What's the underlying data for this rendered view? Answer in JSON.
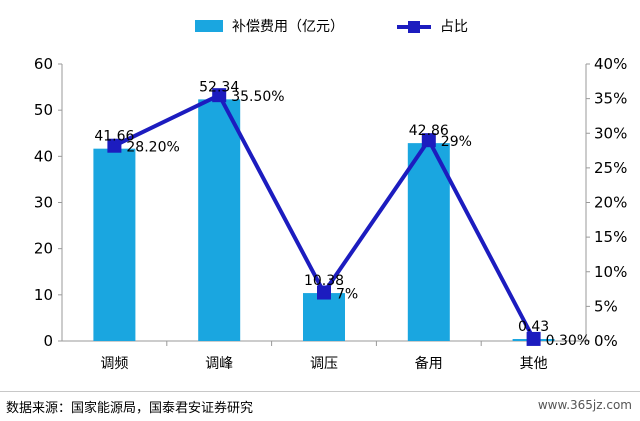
{
  "chart_data": {
    "type": "bar",
    "categories": [
      "调频",
      "调峰",
      "调压",
      "备用",
      "其他"
    ],
    "series": [
      {
        "name": "补偿费用（亿元）",
        "type": "bar",
        "axis": "left",
        "color": "#1aa6e0",
        "values": [
          41.66,
          52.34,
          10.38,
          42.86,
          0.43
        ],
        "labels": [
          "41.66",
          "52.34",
          "10.38",
          "42.86",
          "0.43"
        ]
      },
      {
        "name": "占比",
        "type": "line",
        "axis": "right",
        "color": "#1c1cbf",
        "values": [
          28.2,
          35.5,
          7,
          29,
          0.3
        ],
        "labels": [
          "28.20%",
          "35.50%",
          "7%",
          "29%",
          "0.30%"
        ]
      }
    ],
    "left_axis": {
      "min": 0,
      "max": 60,
      "ticks": [
        "0",
        "10",
        "20",
        "30",
        "40",
        "50",
        "60"
      ]
    },
    "right_axis": {
      "min": 0,
      "max": 40,
      "ticks": [
        "0%",
        "5%",
        "10%",
        "15%",
        "20%",
        "25%",
        "30%",
        "35%",
        "40%"
      ]
    },
    "legend": "top"
  },
  "footer": {
    "source": "数据来源：国家能源局，国泰君安证券研究",
    "watermark": "www.365jz.com"
  }
}
